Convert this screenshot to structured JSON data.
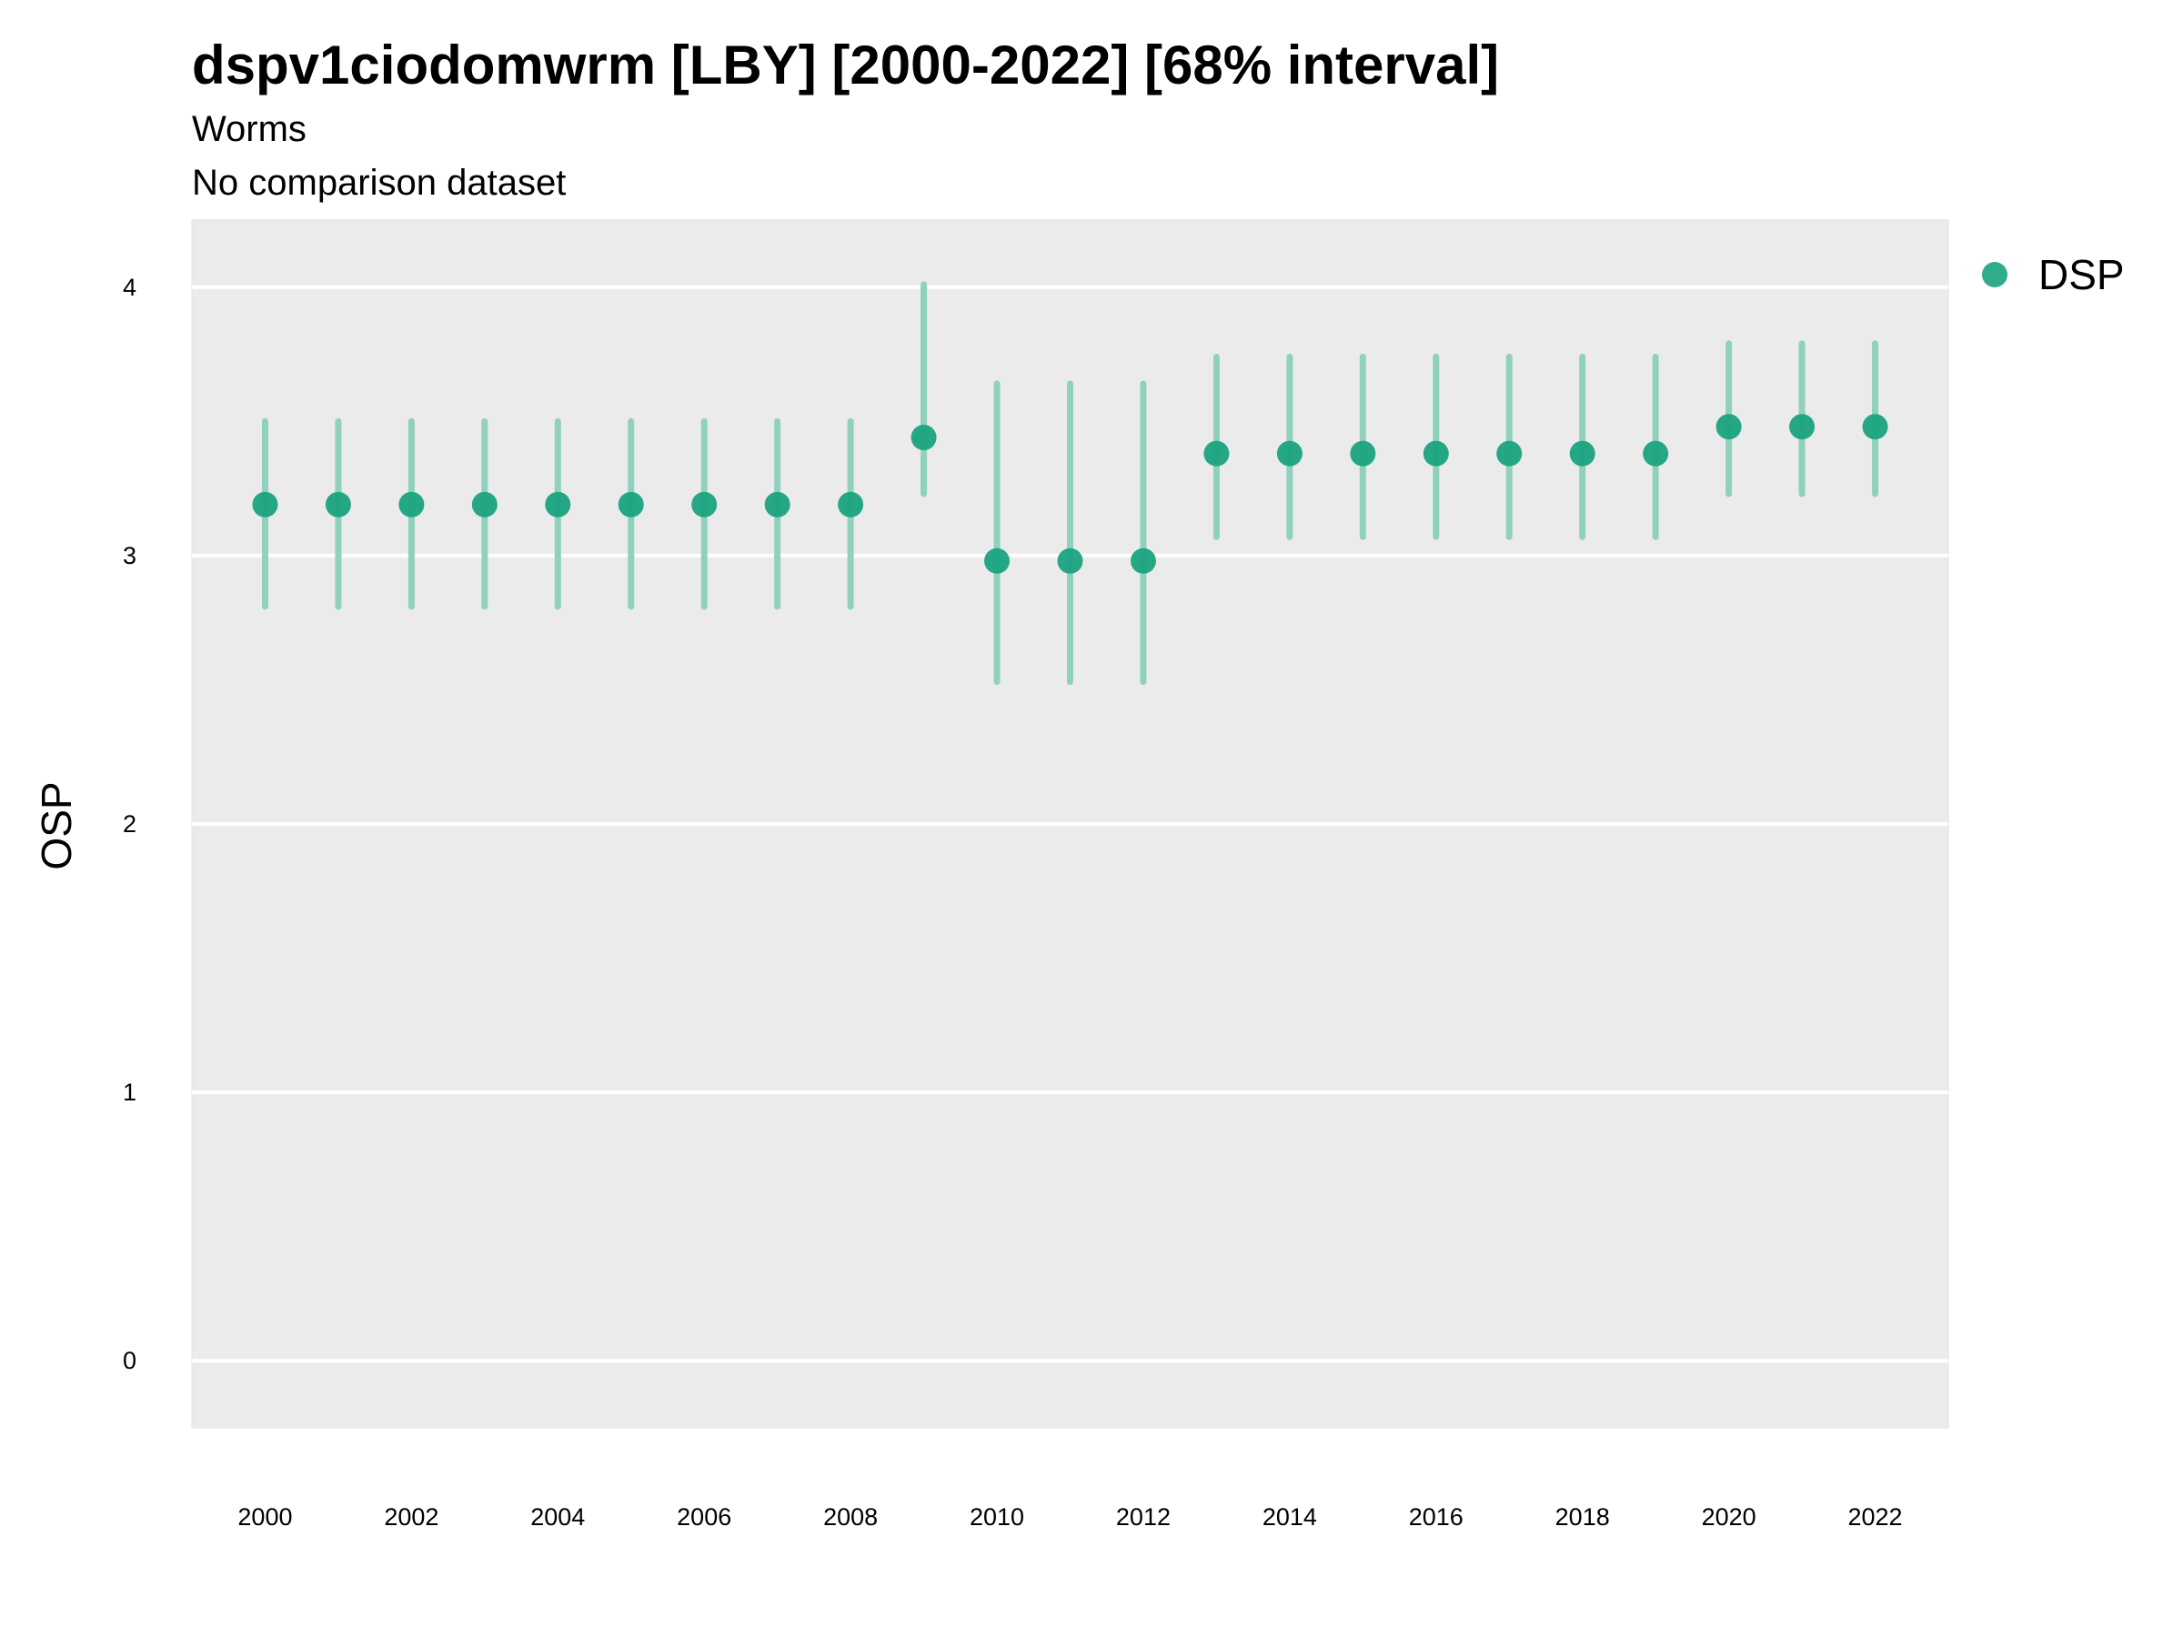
{
  "chart_data": {
    "type": "scatter",
    "title": "dspv1ciodomwrm [LBY] [2000-2022] [68% interval]",
    "subtitle": "Worms",
    "caption_line": "No comparison dataset",
    "xlabel": "",
    "ylabel": "OSP",
    "xlim": [
      1999,
      2023
    ],
    "ylim": [
      -0.25,
      4.25
    ],
    "x_ticks": [
      "2000",
      "2002",
      "2004",
      "2006",
      "2008",
      "2010",
      "2012",
      "2014",
      "2016",
      "2018",
      "2020",
      "2022"
    ],
    "y_ticks": [
      "0",
      "1",
      "2",
      "3",
      "4"
    ],
    "grid": true,
    "legend_position": "right",
    "colors": {
      "point": "#1aa37f",
      "interval": "#8fd1bd",
      "panel": "#ebebeb",
      "grid": "#ffffff"
    },
    "series": [
      {
        "name": "DSP",
        "x": [
          2000,
          2001,
          2002,
          2003,
          2004,
          2005,
          2006,
          2007,
          2008,
          2009,
          2010,
          2011,
          2012,
          2013,
          2014,
          2015,
          2016,
          2017,
          2018,
          2019,
          2020,
          2021,
          2022
        ],
        "y": [
          3.19,
          3.19,
          3.19,
          3.19,
          3.19,
          3.19,
          3.19,
          3.19,
          3.19,
          3.44,
          2.98,
          2.98,
          2.98,
          3.38,
          3.38,
          3.38,
          3.38,
          3.38,
          3.38,
          3.38,
          3.48,
          3.48,
          3.48
        ],
        "lower": [
          2.81,
          2.81,
          2.81,
          2.81,
          2.81,
          2.81,
          2.81,
          2.81,
          2.81,
          3.23,
          2.53,
          2.53,
          2.53,
          3.07,
          3.07,
          3.07,
          3.07,
          3.07,
          3.07,
          3.07,
          3.23,
          3.23,
          3.23
        ],
        "upper": [
          3.5,
          3.5,
          3.5,
          3.5,
          3.5,
          3.5,
          3.5,
          3.5,
          3.5,
          4.01,
          3.64,
          3.64,
          3.64,
          3.74,
          3.74,
          3.74,
          3.74,
          3.74,
          3.74,
          3.74,
          3.79,
          3.79,
          3.79
        ]
      }
    ]
  }
}
